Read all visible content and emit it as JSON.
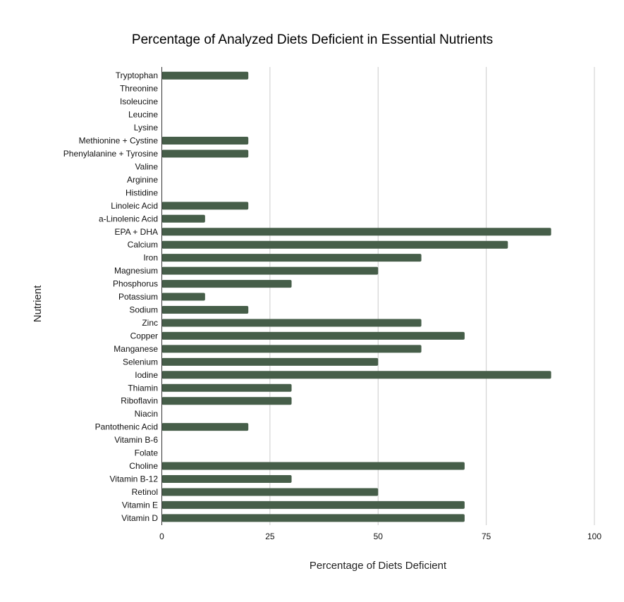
{
  "chart_data": {
    "type": "bar",
    "orientation": "horizontal",
    "title": "Percentage of Analyzed Diets Deficient in Essential Nutrients",
    "xlabel": "Percentage of Diets Deficient",
    "ylabel": "Nutrient",
    "xlim": [
      0,
      100
    ],
    "xticks": [
      "0",
      "25",
      "50",
      "75",
      "100"
    ],
    "grid": true,
    "bar_color": "#465e49",
    "categories": [
      "Tryptophan",
      "Threonine",
      "Isoleucine",
      "Leucine",
      "Lysine",
      "Methionine + Cystine",
      "Phenylalanine + Tyrosine",
      "Valine",
      "Arginine",
      "Histidine",
      "Linoleic Acid",
      "a-Linolenic Acid",
      "EPA + DHA",
      "Calcium",
      "Iron",
      "Magnesium",
      "Phosphorus",
      "Potassium",
      "Sodium",
      "Zinc",
      "Copper",
      "Manganese",
      "Selenium",
      "Iodine",
      "Thiamin",
      "Riboflavin",
      "Niacin",
      "Pantothenic Acid",
      "Vitamin B-6",
      "Folate",
      "Choline",
      "Vitamin B-12",
      "Retinol",
      "Vitamin E",
      "Vitamin D"
    ],
    "values": [
      20,
      0,
      0,
      0,
      0,
      20,
      20,
      0,
      0,
      0,
      20,
      10,
      90,
      80,
      60,
      50,
      30,
      10,
      20,
      60,
      70,
      60,
      50,
      90,
      30,
      30,
      0,
      20,
      0,
      0,
      70,
      30,
      50,
      70,
      70
    ]
  }
}
